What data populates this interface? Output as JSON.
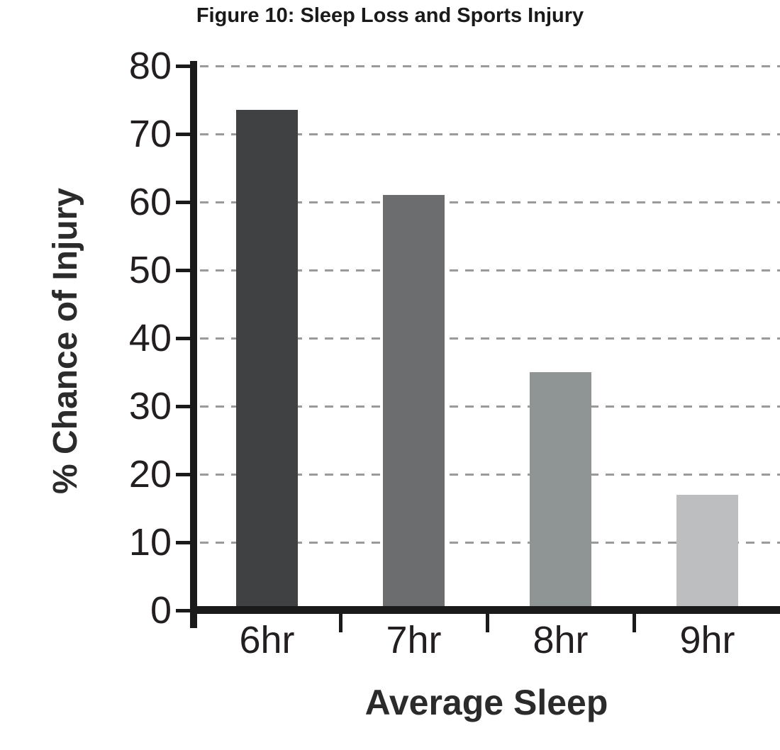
{
  "figure": {
    "title": "Figure 10: Sleep Loss and Sports Injury"
  },
  "chart_data": {
    "type": "bar",
    "title": "Figure 10: Sleep Loss and Sports Injury",
    "categories": [
      "6hr",
      "7hr",
      "8hr",
      "9hr"
    ],
    "values": [
      73.5,
      61,
      35,
      17
    ],
    "xlabel": "Average Sleep",
    "ylabel": "% Chance of Injury",
    "ylim": [
      0,
      80
    ],
    "yticks": [
      0,
      10,
      20,
      30,
      40,
      50,
      60,
      70,
      80
    ],
    "grid": "horizontal-dashed",
    "legend": "none",
    "bar_colors": [
      "#3f4142",
      "#6b6d6e",
      "#8f9594",
      "#bcbec0"
    ],
    "axis_color": "#1a1a1a",
    "gridline_color": "#9a9a9a",
    "text_color": "#231f20"
  }
}
